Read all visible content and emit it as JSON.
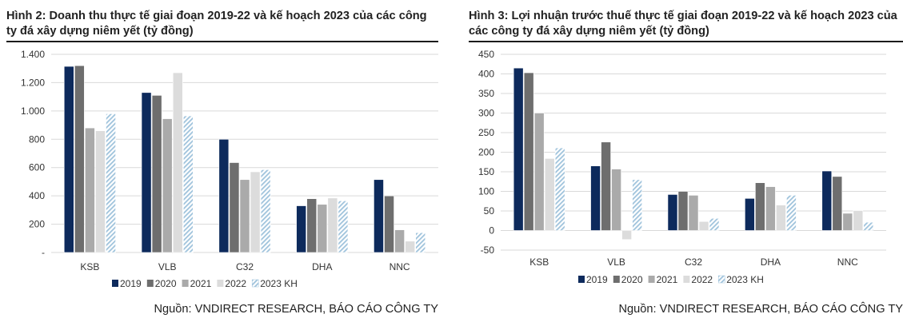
{
  "colors": {
    "series": [
      "#0d2a5c",
      "#6e6e6e",
      "#aaaaaa",
      "#dcdcdc",
      "#9fc3dc"
    ],
    "grid": "#d9d9d9",
    "text": "#333333"
  },
  "chart_data": [
    {
      "type": "bar",
      "title": "Hình 2: Doanh thu thực tế giai đoạn 2019-22 và kế hoạch 2023 của các công ty đá xây dựng niêm yết (tỷ đồng)",
      "categories": [
        "KSB",
        "VLB",
        "C32",
        "DHA",
        "NNC"
      ],
      "series": [
        {
          "name": "2019",
          "values": [
            1315,
            1130,
            800,
            330,
            515
          ]
        },
        {
          "name": "2020",
          "values": [
            1320,
            1110,
            635,
            380,
            400
          ]
        },
        {
          "name": "2021",
          "values": [
            880,
            945,
            515,
            340,
            160
          ]
        },
        {
          "name": "2022",
          "values": [
            860,
            1270,
            570,
            385,
            80
          ]
        },
        {
          "name": "2023 KH",
          "values": [
            980,
            965,
            585,
            365,
            140
          ]
        }
      ],
      "ylim": [
        0,
        1400
      ],
      "yticks": [
        0,
        200,
        400,
        600,
        800,
        1000,
        1200,
        1400
      ],
      "ytick_labels": [
        "-",
        "200",
        "400",
        "600",
        "800",
        "1.000",
        "1.200",
        "1.400"
      ],
      "xlabel": "",
      "ylabel": "",
      "grid": true,
      "legend": "bottom"
    },
    {
      "type": "bar",
      "title": "Hình 3: Lợi nhuận trước thuế thực tế giai đoạn 2019-22 và kế hoạch 2023 của các công ty đá xây dựng niêm yết (tỷ đồng)",
      "categories": [
        "KSB",
        "VLB",
        "C32",
        "DHA",
        "NNC"
      ],
      "series": [
        {
          "name": "2019",
          "values": [
            415,
            165,
            92,
            82,
            152
          ]
        },
        {
          "name": "2020",
          "values": [
            403,
            226,
            100,
            122,
            138
          ]
        },
        {
          "name": "2021",
          "values": [
            300,
            157,
            90,
            112,
            44
          ]
        },
        {
          "name": "2022",
          "values": [
            184,
            -23,
            23,
            65,
            51
          ]
        },
        {
          "name": "2023 KH",
          "values": [
            211,
            130,
            31,
            90,
            21
          ]
        }
      ],
      "ylim": [
        -50,
        450
      ],
      "yticks": [
        -50,
        0,
        50,
        100,
        150,
        200,
        250,
        300,
        350,
        400,
        450
      ],
      "ytick_labels": [
        "-50",
        "0",
        "50",
        "100",
        "150",
        "200",
        "250",
        "300",
        "350",
        "400",
        "450"
      ],
      "xlabel": "",
      "ylabel": "",
      "grid": true,
      "legend": "bottom"
    }
  ],
  "source_text": "Nguồn: VNDIRECT RESEARCH, BÁO CÁO CÔNG TY"
}
